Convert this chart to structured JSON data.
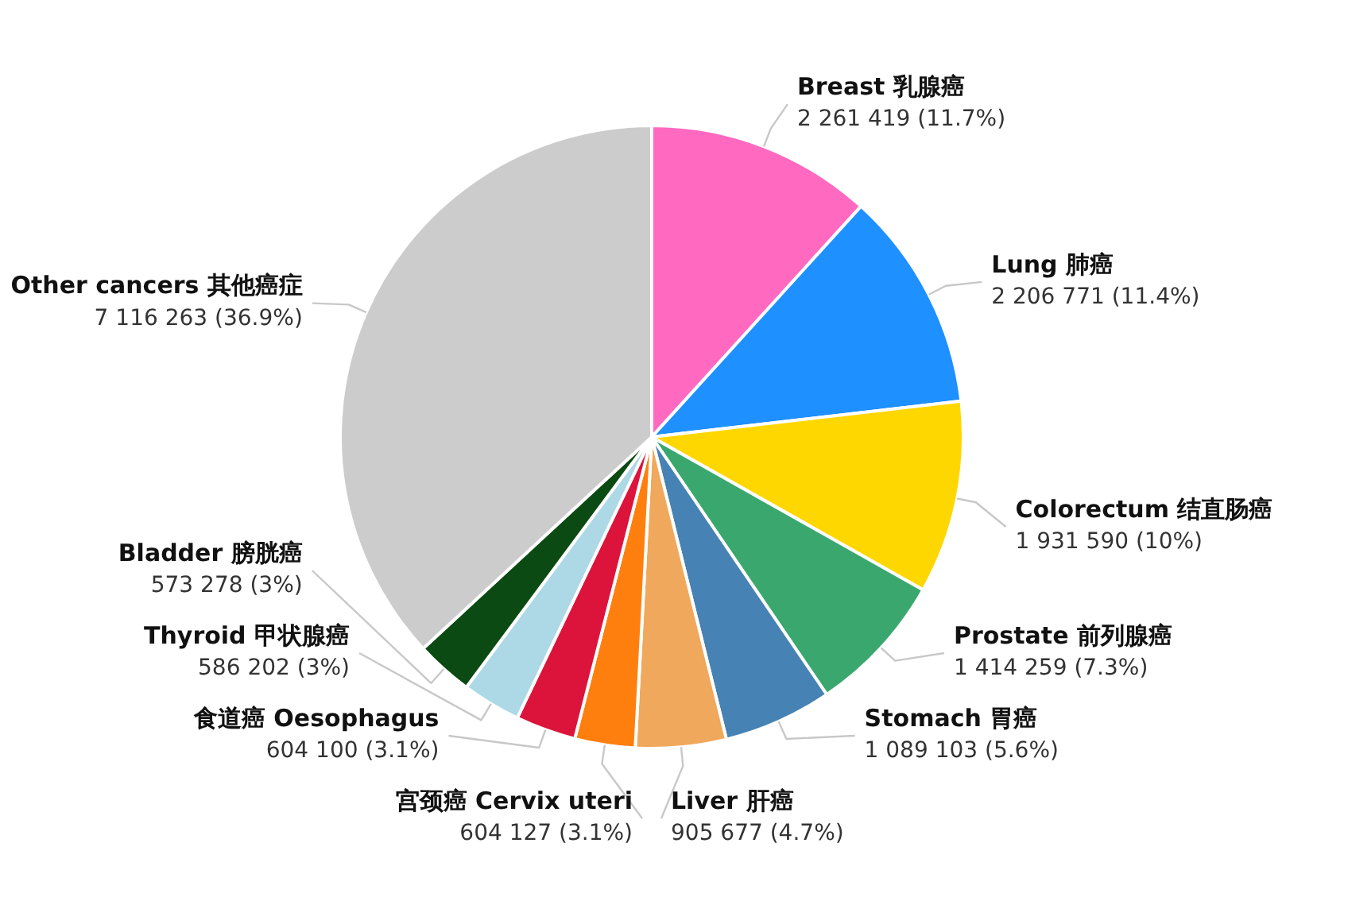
{
  "chart_data": {
    "type": "pie",
    "categories": [
      "Breast 乳腺癌",
      "Lung 肺癌",
      "Colorectum 结直肠癌",
      "Prostate 前列腺癌",
      "Stomach 胃癌",
      "Liver 肝癌",
      "宫颈癌 Cervix uteri",
      "食道癌 Oesophagus",
      "Thyroid 甲状腺癌",
      "Bladder 膀胱癌",
      "Other cancers 其他癌症"
    ],
    "values": [
      2261419,
      2206771,
      1931590,
      1414259,
      1089103,
      905677,
      604127,
      604100,
      586202,
      573278,
      7116263
    ],
    "colors": [
      "#ff69c0",
      "#1e90ff",
      "#ffd700",
      "#3aa86e",
      "#4682b4",
      "#f0a85c",
      "#ff7f0e",
      "#dc143c",
      "#add8e6",
      "#0b4a12",
      "#cccccc"
    ],
    "value_labels": [
      "2 261 419 (11.7%)",
      "2 206 771 (11.4%)",
      "1 931 590 (10%)",
      "1 414 259 (7.3%)",
      "1 089 103 (5.6%)",
      "905 677 (4.7%)",
      "604 127 (3.1%)",
      "604 100 (3.1%)",
      "586 202 (3%)",
      "573 278 (3%)",
      "7 116 263 (36.9%)"
    ]
  }
}
